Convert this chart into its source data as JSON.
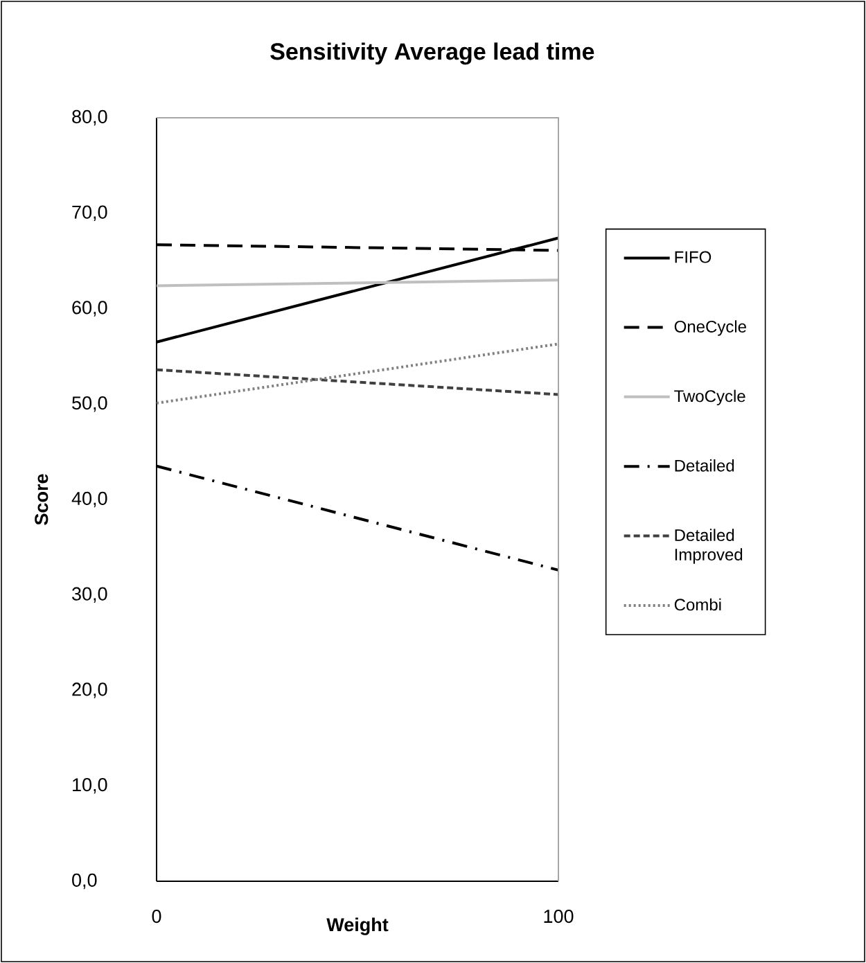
{
  "chart_data": {
    "type": "line",
    "title": "Sensitivity Average lead time",
    "xlabel": "Weight",
    "ylabel": "Score",
    "x": [
      0,
      100
    ],
    "xlim": [
      0,
      100
    ],
    "xticks": [
      0,
      100
    ],
    "ylim": [
      0,
      80
    ],
    "yticks": [
      {
        "value": 0,
        "label": "0,0"
      },
      {
        "value": 10,
        "label": "10,0"
      },
      {
        "value": 20,
        "label": "20,0"
      },
      {
        "value": 30,
        "label": "30,0"
      },
      {
        "value": 40,
        "label": "40,0"
      },
      {
        "value": 50,
        "label": "50,0"
      },
      {
        "value": 60,
        "label": "60,0"
      },
      {
        "value": 70,
        "label": "70,0"
      },
      {
        "value": 80,
        "label": "80,0"
      }
    ],
    "grid": false,
    "legend": "right",
    "marker": "none",
    "series": [
      {
        "name": "FIFO",
        "color": "#000000",
        "line_style": "solid",
        "values": [
          56.5,
          67.4
        ]
      },
      {
        "name": "OneCycle",
        "color": "#000000",
        "line_style": "longdashed",
        "values": [
          66.7,
          66.1
        ]
      },
      {
        "name": "TwoCycle",
        "color": "#bfbfbf",
        "line_style": "solid",
        "values": [
          62.4,
          63.0
        ]
      },
      {
        "name": "Detailed",
        "color": "#000000",
        "line_style": "dashdot",
        "values": [
          43.5,
          32.6
        ]
      },
      {
        "name": "Detailed Improved",
        "color": "#404040",
        "line_style": "dashed",
        "values": [
          53.6,
          51.0
        ]
      },
      {
        "name": "Combi",
        "color": "#808080",
        "line_style": "dotted",
        "values": [
          50.1,
          56.3
        ]
      }
    ]
  }
}
